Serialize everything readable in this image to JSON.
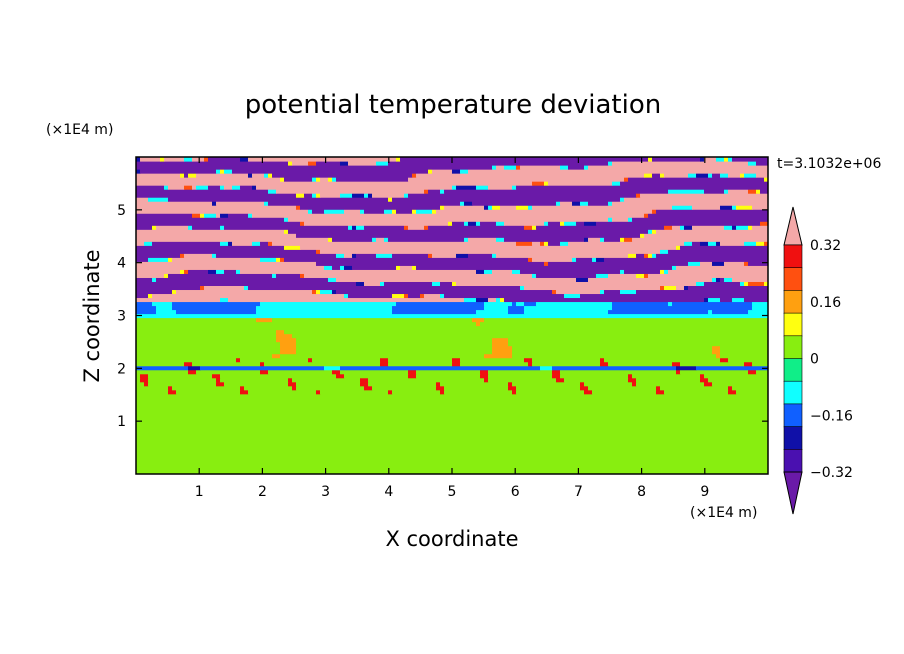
{
  "chart_data": {
    "type": "heatmap",
    "title": "potential temperature deviation",
    "xlabel": "X coordinate",
    "ylabel": "Z coordinate",
    "x_unit": "(×1E4 m)",
    "y_unit": "(×1E4 m)",
    "time_label": "t=3.1032e+06",
    "xlim": [
      0,
      10
    ],
    "ylim": [
      0,
      6
    ],
    "x_ticks": [
      "1",
      "2",
      "3",
      "4",
      "5",
      "6",
      "7",
      "8",
      "9"
    ],
    "y_ticks": [
      "1",
      "2",
      "3",
      "4",
      "5"
    ],
    "colorbar": {
      "tick_labels": [
        "0.32",
        "0.16",
        "0",
        "−0.16",
        "−0.32"
      ],
      "tick_values": [
        0.32,
        0.16,
        0,
        -0.16,
        -0.32
      ],
      "levels": [
        -0.4,
        -0.32,
        -0.24,
        -0.16,
        -0.08,
        0,
        0.08,
        0.16,
        0.24,
        0.32,
        0.4
      ],
      "colors": [
        "#6a1aa8",
        "#4a10b0",
        "#1010a8",
        "#1060ff",
        "#10ffff",
        "#10ee88",
        "#88ee10",
        "#ffff10",
        "#ffa010",
        "#ff5010",
        "#f01010",
        "#f4a8a8"
      ],
      "extend": "both"
    },
    "layers": [
      {
        "z_range": [
          0,
          1.5
        ],
        "pattern": "green patches",
        "values": [
          0,
          0.08
        ]
      },
      {
        "z_range": [
          1.5,
          2.2
        ],
        "pattern": "mixed layer with warm streaks",
        "values": [
          -0.16,
          0.32
        ]
      },
      {
        "z_range": [
          2.2,
          2.95
        ],
        "pattern": "mostly green",
        "values": [
          0,
          0.08
        ]
      },
      {
        "z_range": [
          2.95,
          3.3
        ],
        "pattern": "cyan/blue band",
        "values": [
          -0.24,
          -0.08
        ]
      },
      {
        "z_range": [
          3.3,
          6.0
        ],
        "pattern": "alternating pink and purple bands",
        "values": [
          -0.4,
          0.4
        ]
      }
    ]
  }
}
